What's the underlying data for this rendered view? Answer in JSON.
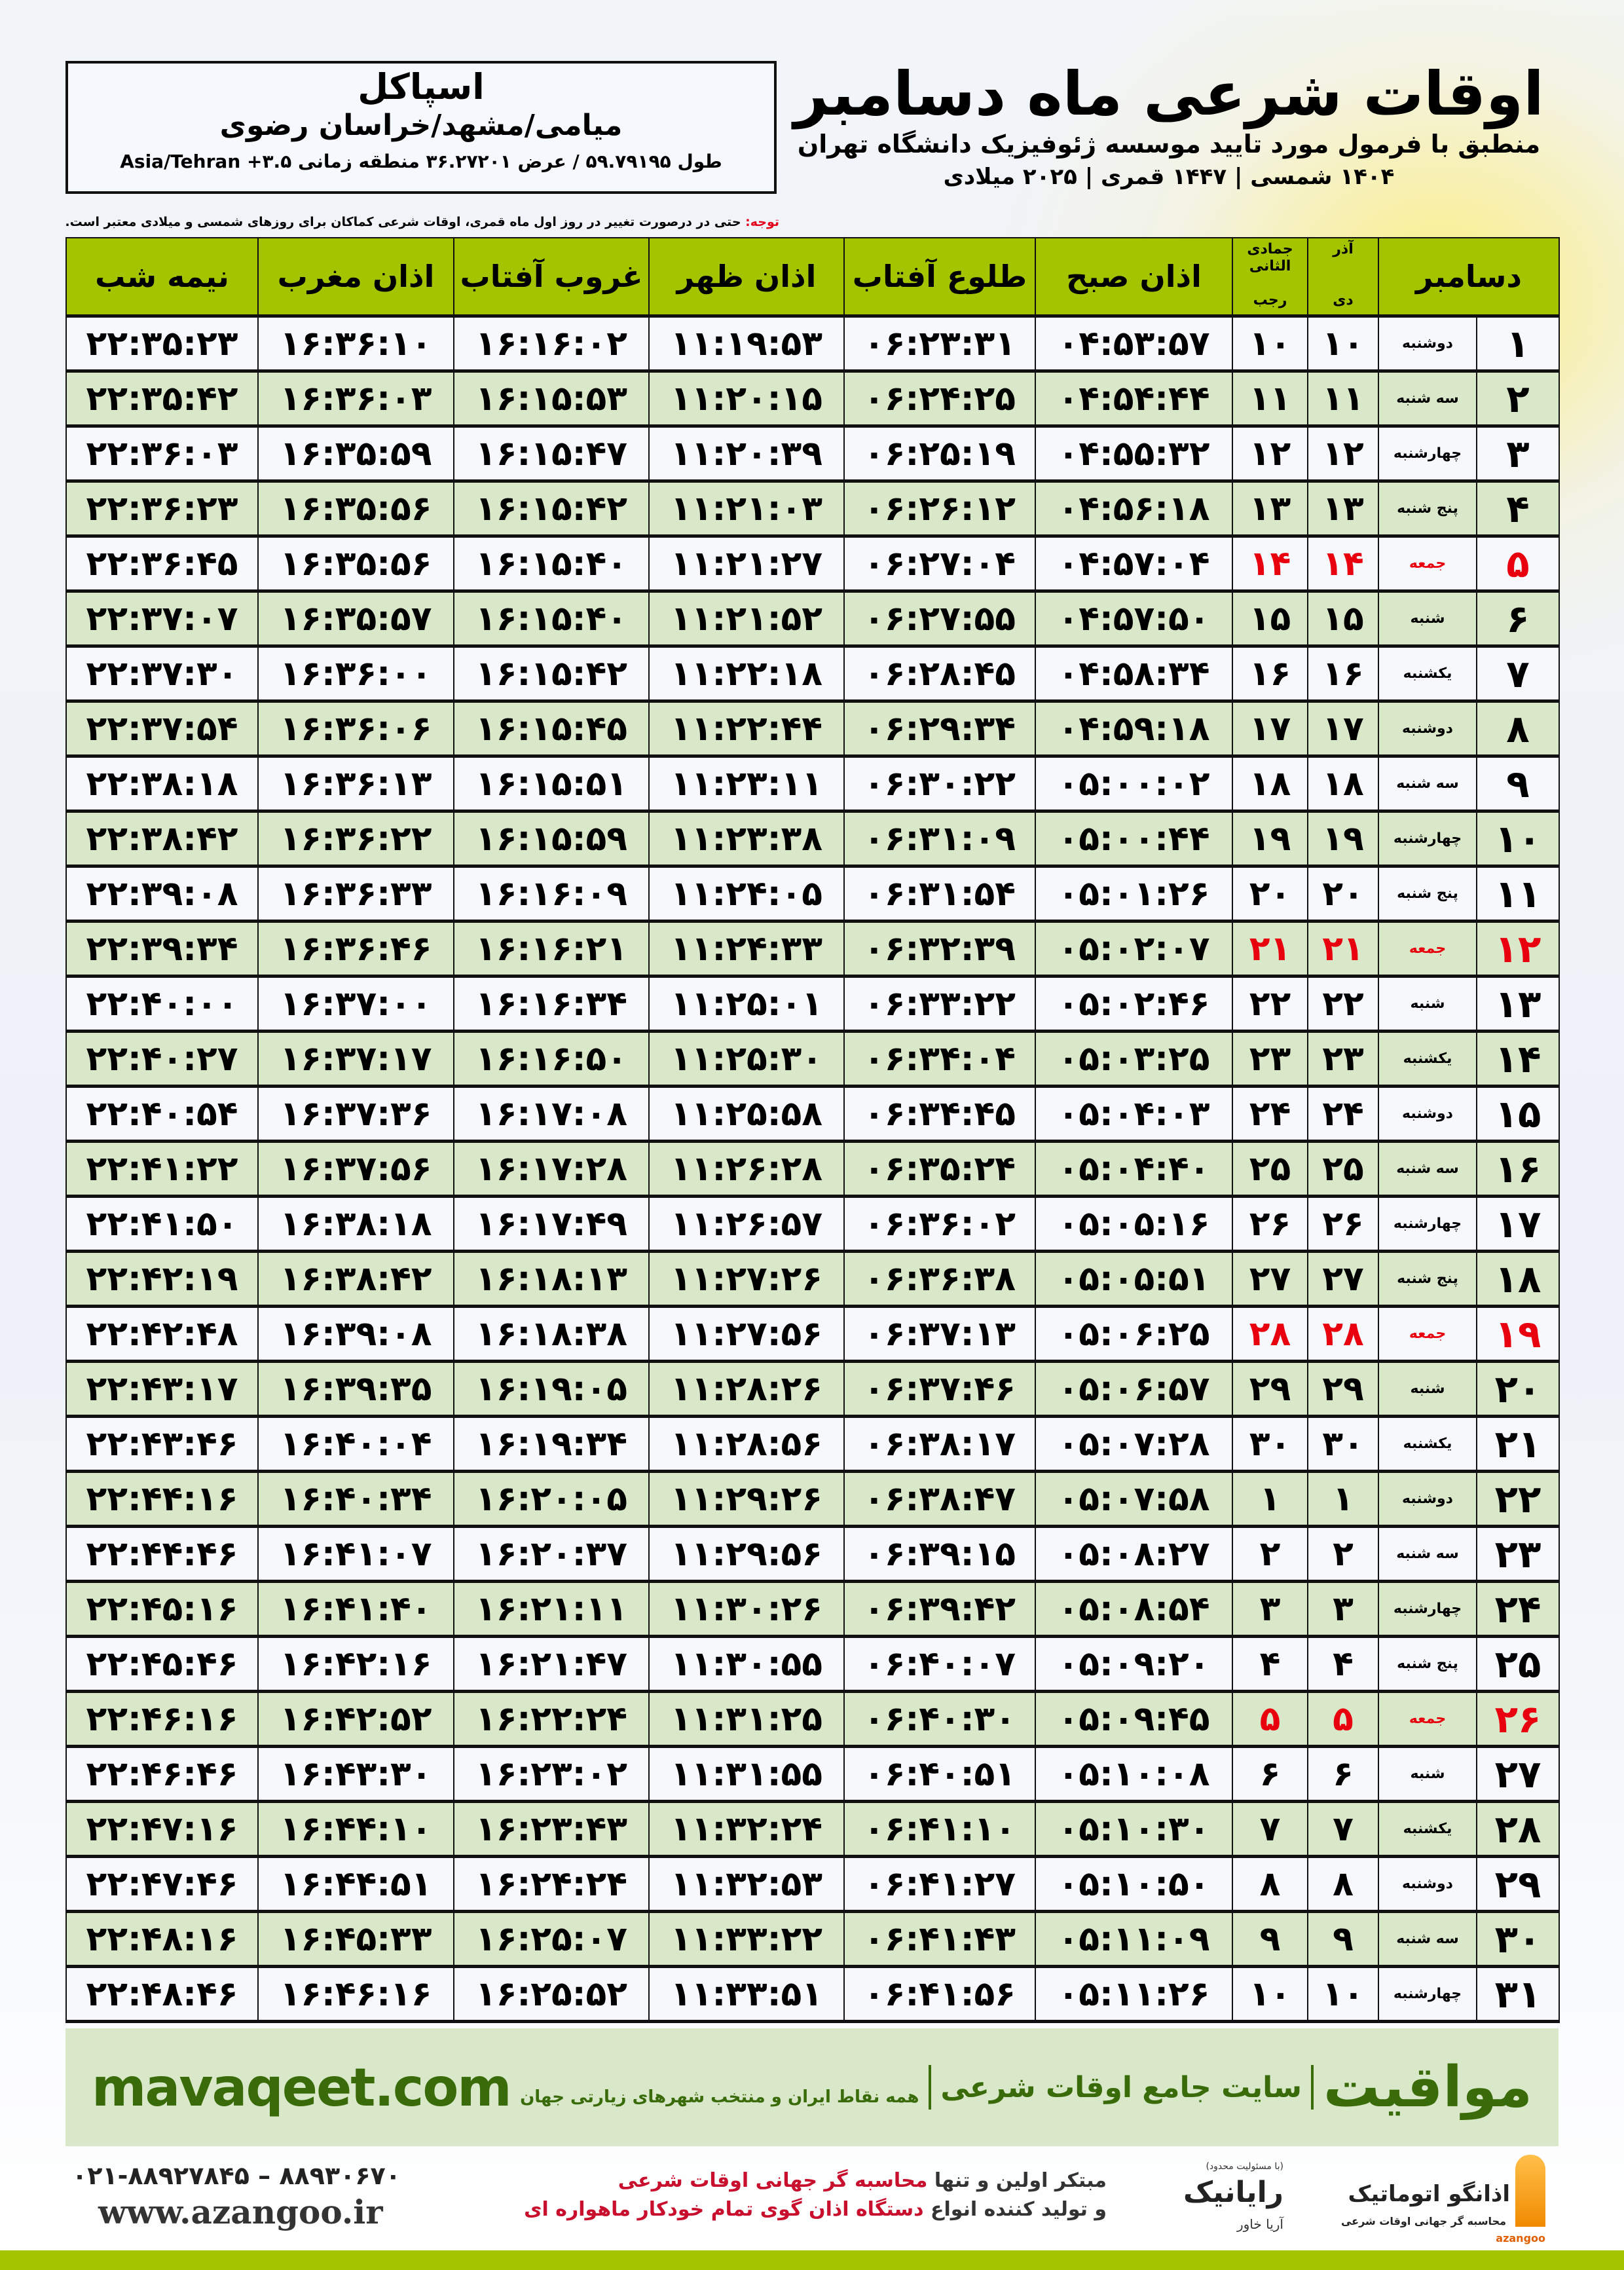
{
  "location": {
    "city": "اسپاکل",
    "region": "میامی/مشهد/خراسان رضوی",
    "coords": "طول ۵۹.۷۹۱۹۵ / عرض ۳۶.۲۷۲۰۱ منطقه زمانی ۳.۵+ Asia/Tehran"
  },
  "header": {
    "title": "اوقات شرعی ماه دسامبر",
    "subtitle": "منطبق با فرمول مورد تایید موسسه ژئوفیزیک دانشگاه تهران",
    "years": "۱۴۰۴ شمسی | ۱۴۴۷ قمری | ۲۰۲۵ میلادی"
  },
  "note": {
    "label": "توجه:",
    "text": " حتی در درصورت تغییر در روز اول ماه قمری، اوقات شرعی کماکان برای روزهای شمسی و میلادی معتبر است."
  },
  "table": {
    "headers": {
      "nimeh": "نیمه شب",
      "maghreb": "اذان مغرب",
      "ghorub": "غروب آفتاب",
      "zohr": "اذان ظهر",
      "tolu": "طلوع آفتاب",
      "sobh": "اذان صبح",
      "hijri_top": "جمادی الثانی",
      "hijri_bottom": "رجب",
      "shamsi_top": "آذر",
      "shamsi_bottom": "دی",
      "month": "دسامبر"
    },
    "accent_color": "#a5c400",
    "alt_row_color": "#d9e8c8",
    "holiday_color": "#e8000f",
    "rows": [
      {
        "day": "۱",
        "weekday": "دوشنبه",
        "shamsi": "۱۰",
        "hijri": "۱۰",
        "sobh": "۰۴:۵۳:۵۷",
        "tolu": "۰۶:۲۳:۳۱",
        "zohr": "۱۱:۱۹:۵۳",
        "ghorub": "۱۶:۱۶:۰۲",
        "maghreb": "۱۶:۳۶:۱۰",
        "nimeh": "۲۲:۳۵:۲۳",
        "holiday": false
      },
      {
        "day": "۲",
        "weekday": "سه شنبه",
        "shamsi": "۱۱",
        "hijri": "۱۱",
        "sobh": "۰۴:۵۴:۴۴",
        "tolu": "۰۶:۲۴:۲۵",
        "zohr": "۱۱:۲۰:۱۵",
        "ghorub": "۱۶:۱۵:۵۳",
        "maghreb": "۱۶:۳۶:۰۳",
        "nimeh": "۲۲:۳۵:۴۲",
        "holiday": false
      },
      {
        "day": "۳",
        "weekday": "چهارشنبه",
        "shamsi": "۱۲",
        "hijri": "۱۲",
        "sobh": "۰۴:۵۵:۳۲",
        "tolu": "۰۶:۲۵:۱۹",
        "zohr": "۱۱:۲۰:۳۹",
        "ghorub": "۱۶:۱۵:۴۷",
        "maghreb": "۱۶:۳۵:۵۹",
        "nimeh": "۲۲:۳۶:۰۳",
        "holiday": false
      },
      {
        "day": "۴",
        "weekday": "پنج شنبه",
        "shamsi": "۱۳",
        "hijri": "۱۳",
        "sobh": "۰۴:۵۶:۱۸",
        "tolu": "۰۶:۲۶:۱۲",
        "zohr": "۱۱:۲۱:۰۳",
        "ghorub": "۱۶:۱۵:۴۲",
        "maghreb": "۱۶:۳۵:۵۶",
        "nimeh": "۲۲:۳۶:۲۳",
        "holiday": false
      },
      {
        "day": "۵",
        "weekday": "جمعه",
        "shamsi": "۱۴",
        "hijri": "۱۴",
        "sobh": "۰۴:۵۷:۰۴",
        "tolu": "۰۶:۲۷:۰۴",
        "zohr": "۱۱:۲۱:۲۷",
        "ghorub": "۱۶:۱۵:۴۰",
        "maghreb": "۱۶:۳۵:۵۶",
        "nimeh": "۲۲:۳۶:۴۵",
        "holiday": true
      },
      {
        "day": "۶",
        "weekday": "شنبه",
        "shamsi": "۱۵",
        "hijri": "۱۵",
        "sobh": "۰۴:۵۷:۵۰",
        "tolu": "۰۶:۲۷:۵۵",
        "zohr": "۱۱:۲۱:۵۲",
        "ghorub": "۱۶:۱۵:۴۰",
        "maghreb": "۱۶:۳۵:۵۷",
        "nimeh": "۲۲:۳۷:۰۷",
        "holiday": false
      },
      {
        "day": "۷",
        "weekday": "یکشنبه",
        "shamsi": "۱۶",
        "hijri": "۱۶",
        "sobh": "۰۴:۵۸:۳۴",
        "tolu": "۰۶:۲۸:۴۵",
        "zohr": "۱۱:۲۲:۱۸",
        "ghorub": "۱۶:۱۵:۴۲",
        "maghreb": "۱۶:۳۶:۰۰",
        "nimeh": "۲۲:۳۷:۳۰",
        "holiday": false
      },
      {
        "day": "۸",
        "weekday": "دوشنبه",
        "shamsi": "۱۷",
        "hijri": "۱۷",
        "sobh": "۰۴:۵۹:۱۸",
        "tolu": "۰۶:۲۹:۳۴",
        "zohr": "۱۱:۲۲:۴۴",
        "ghorub": "۱۶:۱۵:۴۵",
        "maghreb": "۱۶:۳۶:۰۶",
        "nimeh": "۲۲:۳۷:۵۴",
        "holiday": false
      },
      {
        "day": "۹",
        "weekday": "سه شنبه",
        "shamsi": "۱۸",
        "hijri": "۱۸",
        "sobh": "۰۵:۰۰:۰۲",
        "tolu": "۰۶:۳۰:۲۲",
        "zohr": "۱۱:۲۳:۱۱",
        "ghorub": "۱۶:۱۵:۵۱",
        "maghreb": "۱۶:۳۶:۱۳",
        "nimeh": "۲۲:۳۸:۱۸",
        "holiday": false
      },
      {
        "day": "۱۰",
        "weekday": "چهارشنبه",
        "shamsi": "۱۹",
        "hijri": "۱۹",
        "sobh": "۰۵:۰۰:۴۴",
        "tolu": "۰۶:۳۱:۰۹",
        "zohr": "۱۱:۲۳:۳۸",
        "ghorub": "۱۶:۱۵:۵۹",
        "maghreb": "۱۶:۳۶:۲۲",
        "nimeh": "۲۲:۳۸:۴۲",
        "holiday": false
      },
      {
        "day": "۱۱",
        "weekday": "پنج شنبه",
        "shamsi": "۲۰",
        "hijri": "۲۰",
        "sobh": "۰۵:۰۱:۲۶",
        "tolu": "۰۶:۳۱:۵۴",
        "zohr": "۱۱:۲۴:۰۵",
        "ghorub": "۱۶:۱۶:۰۹",
        "maghreb": "۱۶:۳۶:۳۳",
        "nimeh": "۲۲:۳۹:۰۸",
        "holiday": false
      },
      {
        "day": "۱۲",
        "weekday": "جمعه",
        "shamsi": "۲۱",
        "hijri": "۲۱",
        "sobh": "۰۵:۰۲:۰۷",
        "tolu": "۰۶:۳۲:۳۹",
        "zohr": "۱۱:۲۴:۳۳",
        "ghorub": "۱۶:۱۶:۲۱",
        "maghreb": "۱۶:۳۶:۴۶",
        "nimeh": "۲۲:۳۹:۳۴",
        "holiday": true
      },
      {
        "day": "۱۳",
        "weekday": "شنبه",
        "shamsi": "۲۲",
        "hijri": "۲۲",
        "sobh": "۰۵:۰۲:۴۶",
        "tolu": "۰۶:۳۳:۲۲",
        "zohr": "۱۱:۲۵:۰۱",
        "ghorub": "۱۶:۱۶:۳۴",
        "maghreb": "۱۶:۳۷:۰۰",
        "nimeh": "۲۲:۴۰:۰۰",
        "holiday": false
      },
      {
        "day": "۱۴",
        "weekday": "یکشنبه",
        "shamsi": "۲۳",
        "hijri": "۲۳",
        "sobh": "۰۵:۰۳:۲۵",
        "tolu": "۰۶:۳۴:۰۴",
        "zohr": "۱۱:۲۵:۳۰",
        "ghorub": "۱۶:۱۶:۵۰",
        "maghreb": "۱۶:۳۷:۱۷",
        "nimeh": "۲۲:۴۰:۲۷",
        "holiday": false
      },
      {
        "day": "۱۵",
        "weekday": "دوشنبه",
        "shamsi": "۲۴",
        "hijri": "۲۴",
        "sobh": "۰۵:۰۴:۰۳",
        "tolu": "۰۶:۳۴:۴۵",
        "zohr": "۱۱:۲۵:۵۸",
        "ghorub": "۱۶:۱۷:۰۸",
        "maghreb": "۱۶:۳۷:۳۶",
        "nimeh": "۲۲:۴۰:۵۴",
        "holiday": false
      },
      {
        "day": "۱۶",
        "weekday": "سه شنبه",
        "shamsi": "۲۵",
        "hijri": "۲۵",
        "sobh": "۰۵:۰۴:۴۰",
        "tolu": "۰۶:۳۵:۲۴",
        "zohr": "۱۱:۲۶:۲۸",
        "ghorub": "۱۶:۱۷:۲۸",
        "maghreb": "۱۶:۳۷:۵۶",
        "nimeh": "۲۲:۴۱:۲۲",
        "holiday": false
      },
      {
        "day": "۱۷",
        "weekday": "چهارشنبه",
        "shamsi": "۲۶",
        "hijri": "۲۶",
        "sobh": "۰۵:۰۵:۱۶",
        "tolu": "۰۶:۳۶:۰۲",
        "zohr": "۱۱:۲۶:۵۷",
        "ghorub": "۱۶:۱۷:۴۹",
        "maghreb": "۱۶:۳۸:۱۸",
        "nimeh": "۲۲:۴۱:۵۰",
        "holiday": false
      },
      {
        "day": "۱۸",
        "weekday": "پنج شنبه",
        "shamsi": "۲۷",
        "hijri": "۲۷",
        "sobh": "۰۵:۰۵:۵۱",
        "tolu": "۰۶:۳۶:۳۸",
        "zohr": "۱۱:۲۷:۲۶",
        "ghorub": "۱۶:۱۸:۱۳",
        "maghreb": "۱۶:۳۸:۴۲",
        "nimeh": "۲۲:۴۲:۱۹",
        "holiday": false
      },
      {
        "day": "۱۹",
        "weekday": "جمعه",
        "shamsi": "۲۸",
        "hijri": "۲۸",
        "sobh": "۰۵:۰۶:۲۵",
        "tolu": "۰۶:۳۷:۱۳",
        "zohr": "۱۱:۲۷:۵۶",
        "ghorub": "۱۶:۱۸:۳۸",
        "maghreb": "۱۶:۳۹:۰۸",
        "nimeh": "۲۲:۴۲:۴۸",
        "holiday": true
      },
      {
        "day": "۲۰",
        "weekday": "شنبه",
        "shamsi": "۲۹",
        "hijri": "۲۹",
        "sobh": "۰۵:۰۶:۵۷",
        "tolu": "۰۶:۳۷:۴۶",
        "zohr": "۱۱:۲۸:۲۶",
        "ghorub": "۱۶:۱۹:۰۵",
        "maghreb": "۱۶:۳۹:۳۵",
        "nimeh": "۲۲:۴۳:۱۷",
        "holiday": false
      },
      {
        "day": "۲۱",
        "weekday": "یکشنبه",
        "shamsi": "۳۰",
        "hijri": "۳۰",
        "sobh": "۰۵:۰۷:۲۸",
        "tolu": "۰۶:۳۸:۱۷",
        "zohr": "۱۱:۲۸:۵۶",
        "ghorub": "۱۶:۱۹:۳۴",
        "maghreb": "۱۶:۴۰:۰۴",
        "nimeh": "۲۲:۴۳:۴۶",
        "holiday": false
      },
      {
        "day": "۲۲",
        "weekday": "دوشنبه",
        "shamsi": "۱",
        "hijri": "۱",
        "sobh": "۰۵:۰۷:۵۸",
        "tolu": "۰۶:۳۸:۴۷",
        "zohr": "۱۱:۲۹:۲۶",
        "ghorub": "۱۶:۲۰:۰۵",
        "maghreb": "۱۶:۴۰:۳۴",
        "nimeh": "۲۲:۴۴:۱۶",
        "holiday": false
      },
      {
        "day": "۲۳",
        "weekday": "سه شنبه",
        "shamsi": "۲",
        "hijri": "۲",
        "sobh": "۰۵:۰۸:۲۷",
        "tolu": "۰۶:۳۹:۱۵",
        "zohr": "۱۱:۲۹:۵۶",
        "ghorub": "۱۶:۲۰:۳۷",
        "maghreb": "۱۶:۴۱:۰۷",
        "nimeh": "۲۲:۴۴:۴۶",
        "holiday": false
      },
      {
        "day": "۲۴",
        "weekday": "چهارشنبه",
        "shamsi": "۳",
        "hijri": "۳",
        "sobh": "۰۵:۰۸:۵۴",
        "tolu": "۰۶:۳۹:۴۲",
        "zohr": "۱۱:۳۰:۲۶",
        "ghorub": "۱۶:۲۱:۱۱",
        "maghreb": "۱۶:۴۱:۴۰",
        "nimeh": "۲۲:۴۵:۱۶",
        "holiday": false
      },
      {
        "day": "۲۵",
        "weekday": "پنج شنبه",
        "shamsi": "۴",
        "hijri": "۴",
        "sobh": "۰۵:۰۹:۲۰",
        "tolu": "۰۶:۴۰:۰۷",
        "zohr": "۱۱:۳۰:۵۵",
        "ghorub": "۱۶:۲۱:۴۷",
        "maghreb": "۱۶:۴۲:۱۶",
        "nimeh": "۲۲:۴۵:۴۶",
        "holiday": false
      },
      {
        "day": "۲۶",
        "weekday": "جمعه",
        "shamsi": "۵",
        "hijri": "۵",
        "sobh": "۰۵:۰۹:۴۵",
        "tolu": "۰۶:۴۰:۳۰",
        "zohr": "۱۱:۳۱:۲۵",
        "ghorub": "۱۶:۲۲:۲۴",
        "maghreb": "۱۶:۴۲:۵۲",
        "nimeh": "۲۲:۴۶:۱۶",
        "holiday": true
      },
      {
        "day": "۲۷",
        "weekday": "شنبه",
        "shamsi": "۶",
        "hijri": "۶",
        "sobh": "۰۵:۱۰:۰۸",
        "tolu": "۰۶:۴۰:۵۱",
        "zohr": "۱۱:۳۱:۵۵",
        "ghorub": "۱۶:۲۳:۰۲",
        "maghreb": "۱۶:۴۳:۳۰",
        "nimeh": "۲۲:۴۶:۴۶",
        "holiday": false
      },
      {
        "day": "۲۸",
        "weekday": "یکشنبه",
        "shamsi": "۷",
        "hijri": "۷",
        "sobh": "۰۵:۱۰:۳۰",
        "tolu": "۰۶:۴۱:۱۰",
        "zohr": "۱۱:۳۲:۲۴",
        "ghorub": "۱۶:۲۳:۴۳",
        "maghreb": "۱۶:۴۴:۱۰",
        "nimeh": "۲۲:۴۷:۱۶",
        "holiday": false
      },
      {
        "day": "۲۹",
        "weekday": "دوشنبه",
        "shamsi": "۸",
        "hijri": "۸",
        "sobh": "۰۵:۱۰:۵۰",
        "tolu": "۰۶:۴۱:۲۷",
        "zohr": "۱۱:۳۲:۵۳",
        "ghorub": "۱۶:۲۴:۲۴",
        "maghreb": "۱۶:۴۴:۵۱",
        "nimeh": "۲۲:۴۷:۴۶",
        "holiday": false
      },
      {
        "day": "۳۰",
        "weekday": "سه شنبه",
        "shamsi": "۹",
        "hijri": "۹",
        "sobh": "۰۵:۱۱:۰۹",
        "tolu": "۰۶:۴۱:۴۳",
        "zohr": "۱۱:۳۳:۲۲",
        "ghorub": "۱۶:۲۵:۰۷",
        "maghreb": "۱۶:۴۵:۳۳",
        "nimeh": "۲۲:۴۸:۱۶",
        "holiday": false
      },
      {
        "day": "۳۱",
        "weekday": "چهارشنبه",
        "shamsi": "۱۰",
        "hijri": "۱۰",
        "sobh": "۰۵:۱۱:۲۶",
        "tolu": "۰۶:۴۱:۵۶",
        "zohr": "۱۱:۳۳:۵۱",
        "ghorub": "۱۶:۲۵:۵۲",
        "maghreb": "۱۶:۴۶:۱۶",
        "nimeh": "۲۲:۴۸:۴۶",
        "holiday": false
      }
    ]
  },
  "banner": {
    "brand": "مواقیت",
    "description": "سایت جامع اوقات شرعی",
    "description2": "همه نقاط ایران و منتخب شهرهای زیارتی جهان",
    "site": "mavaqeet.com"
  },
  "footer": {
    "phone": "۰۲۱-۸۸۹۲۷۸۴۵ – ۸۸۹۳۰۶۷۰",
    "website": "www.azangoo.ir",
    "promo_line1_a": "مبتکر اولین و تنها ",
    "promo_line1_b": "محاسبه گر جهانی اوقات شرعی",
    "promo_line2_a": "و تولید کننده انواع ",
    "promo_line2_b": "دستگاه اذان گوی تمام خودکار ماهواره ای",
    "rayanik_logo": "رایانیک",
    "rayanik_small": "(با مسئولیت محدود)",
    "rayanik_side": "آریا خاور",
    "azangoo_logo": "اذانگو اتوماتیک",
    "azangoo_tag": "محاسبه گر جهانی اوقات شرعی",
    "azangoo_en": "azangoo"
  }
}
